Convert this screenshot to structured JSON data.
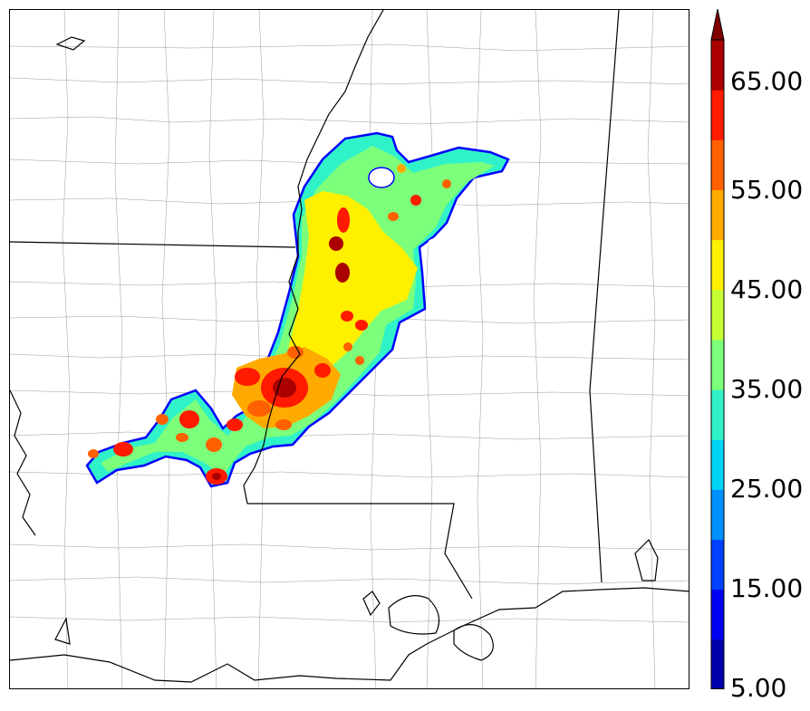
{
  "colorbar": {
    "labels": [
      "65.00",
      "55.00",
      "45.00",
      "35.00",
      "25.00",
      "15.00",
      "5.00"
    ],
    "bins": [
      {
        "from": 5,
        "to": 10,
        "color": "#0000aa"
      },
      {
        "from": 10,
        "to": 15,
        "color": "#0000f2"
      },
      {
        "from": 15,
        "to": 20,
        "color": "#0040ff"
      },
      {
        "from": 20,
        "to": 25,
        "color": "#0090ff"
      },
      {
        "from": 25,
        "to": 30,
        "color": "#00d4f6"
      },
      {
        "from": 30,
        "to": 35,
        "color": "#30f2c8"
      },
      {
        "from": 35,
        "to": 40,
        "color": "#7cff7a"
      },
      {
        "from": 40,
        "to": 45,
        "color": "#c4ff34"
      },
      {
        "from": 45,
        "to": 50,
        "color": "#fff000"
      },
      {
        "from": 50,
        "to": 55,
        "color": "#ffaa00"
      },
      {
        "from": 55,
        "to": 60,
        "color": "#ff6000"
      },
      {
        "from": 60,
        "to": 65,
        "color": "#ff1a00"
      },
      {
        "from": 65,
        "to": 70,
        "color": "#aa0000"
      }
    ],
    "overflow_color": "#800000"
  },
  "map": {
    "state_line_color": "#000000",
    "county_line_color": "#9a9a9a",
    "radar_outline_color": "#0000ff"
  }
}
